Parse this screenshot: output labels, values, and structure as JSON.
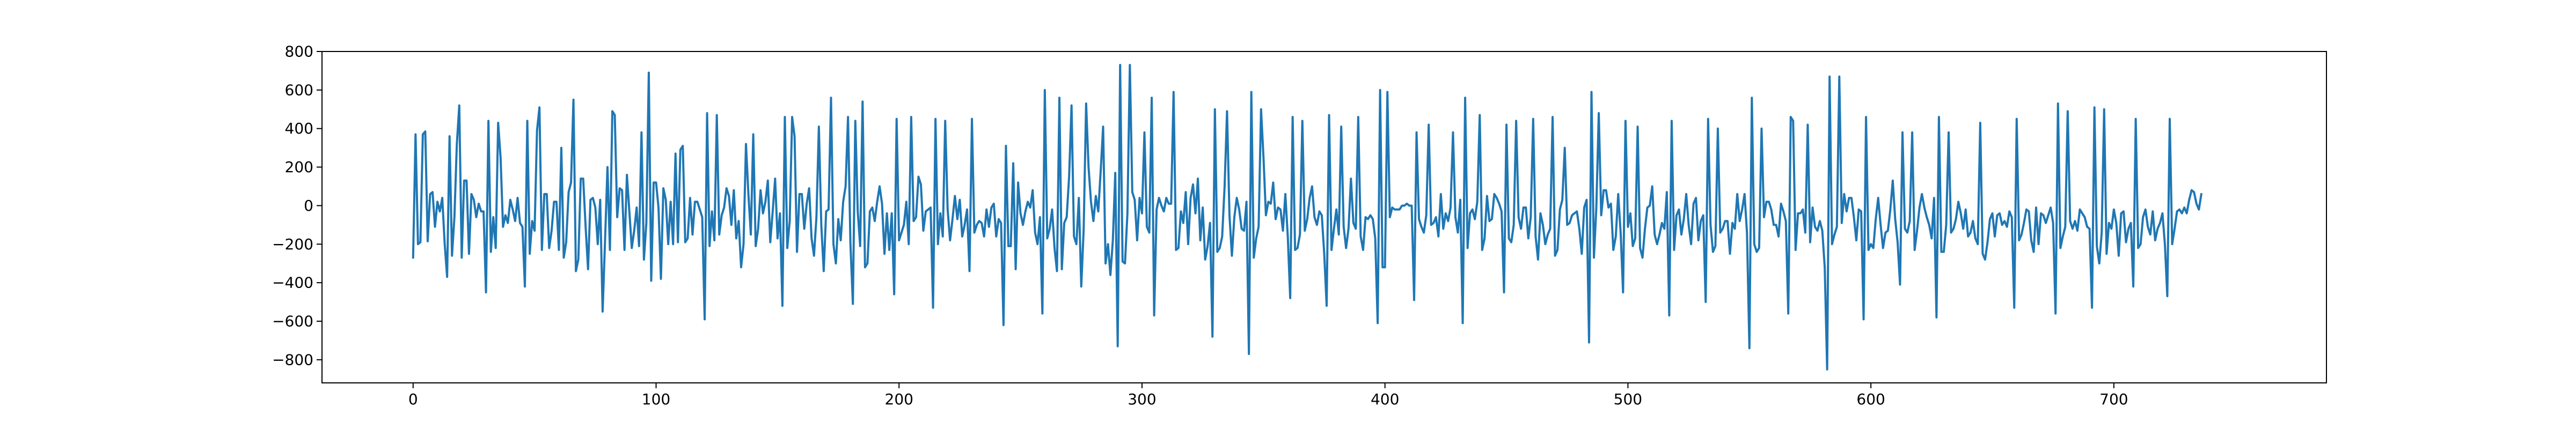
{
  "chart_data": {
    "type": "line",
    "title": "",
    "xlabel": "",
    "ylabel": "",
    "xlim": [
      -37.5,
      787.5
    ],
    "ylim": [
      -920,
      800
    ],
    "xticks": [
      0,
      100,
      200,
      300,
      400,
      500,
      600,
      700
    ],
    "yticks": [
      -800,
      -600,
      -400,
      -200,
      0,
      200,
      400,
      600,
      800
    ],
    "grid": false,
    "legend": "none",
    "series": [
      {
        "color": "#1f77b4",
        "x_start": 0,
        "x_step": 1,
        "values": [
          -270,
          370,
          -200,
          -190,
          370,
          385,
          -185,
          60,
          70,
          -110,
          20,
          -30,
          40,
          -200,
          -370,
          360,
          -260,
          -60,
          320,
          520,
          -270,
          130,
          130,
          -250,
          60,
          30,
          -60,
          10,
          -30,
          -30,
          -450,
          440,
          -240,
          -60,
          -220,
          430,
          250,
          -110,
          -50,
          -90,
          30,
          -20,
          -80,
          40,
          -90,
          -110,
          -420,
          440,
          -250,
          -80,
          -130,
          390,
          510,
          -230,
          60,
          60,
          -220,
          -130,
          20,
          20,
          -230,
          300,
          -270,
          -190,
          70,
          120,
          550,
          -340,
          -280,
          140,
          140,
          -110,
          -330,
          30,
          40,
          -10,
          -200,
          30,
          -550,
          -180,
          200,
          -230,
          490,
          470,
          -60,
          90,
          80,
          -230,
          160,
          -30,
          -220,
          -130,
          -10,
          -210,
          380,
          -280,
          -90,
          690,
          -390,
          120,
          120,
          -10,
          -380,
          90,
          30,
          -200,
          20,
          -200,
          270,
          -190,
          290,
          310,
          -190,
          -170,
          40,
          -150,
          20,
          20,
          -20,
          -60,
          -590,
          480,
          -210,
          -30,
          -180,
          470,
          -150,
          -50,
          -10,
          90,
          50,
          -100,
          80,
          -170,
          -80,
          -320,
          -200,
          320,
          60,
          -150,
          370,
          -210,
          -120,
          80,
          -40,
          20,
          130,
          -190,
          -30,
          140,
          -170,
          -40,
          -520,
          460,
          -220,
          -80,
          460,
          360,
          -240,
          60,
          60,
          -120,
          10,
          90,
          -170,
          -260,
          -60,
          410,
          -100,
          -340,
          -30,
          -20,
          560,
          -200,
          -300,
          -70,
          -180,
          20,
          100,
          460,
          -200,
          -510,
          440,
          -30,
          -210,
          540,
          -320,
          -300,
          -30,
          -10,
          -80,
          20,
          100,
          10,
          -250,
          -40,
          -230,
          -40,
          -460,
          450,
          -180,
          -140,
          -100,
          20,
          -200,
          460,
          -80,
          -60,
          150,
          110,
          -130,
          -30,
          -20,
          -10,
          -530,
          450,
          -200,
          -40,
          -160,
          440,
          -20,
          -180,
          -70,
          50,
          -70,
          30,
          -160,
          -100,
          -20,
          -340,
          450,
          -140,
          -100,
          -80,
          -90,
          -160,
          -20,
          -110,
          -10,
          10,
          -160,
          -70,
          -90,
          -620,
          310,
          -210,
          -210,
          220,
          -330,
          120,
          -40,
          -100,
          -30,
          20,
          -10,
          80,
          -140,
          -200,
          -60,
          -560,
          600,
          -170,
          -120,
          -20,
          -220,
          -340,
          560,
          -330,
          -90,
          -60,
          150,
          520,
          -160,
          -200,
          40,
          -420,
          -120,
          530,
          200,
          20,
          -80,
          50,
          -30,
          180,
          410,
          -300,
          -200,
          -360,
          -180,
          170,
          -730,
          730,
          -290,
          -300,
          -40,
          730,
          70,
          30,
          -180,
          40,
          -40,
          380,
          -110,
          -140,
          560,
          -570,
          -20,
          40,
          0,
          -30,
          40,
          10,
          10,
          590,
          -230,
          -220,
          -30,
          -90,
          70,
          -200,
          40,
          110,
          -40,
          140,
          -180,
          -10,
          -280,
          -210,
          -90,
          -680,
          500,
          -240,
          -220,
          -160,
          100,
          490,
          -50,
          -260,
          -60,
          40,
          -20,
          -120,
          -130,
          20,
          -770,
          590,
          -270,
          -170,
          -110,
          500,
          250,
          -50,
          20,
          10,
          120,
          -70,
          -10,
          -20,
          -130,
          60,
          -160,
          -480,
          460,
          -230,
          -220,
          -150,
          440,
          -130,
          -70,
          40,
          100,
          -60,
          -100,
          -30,
          -50,
          -250,
          -520,
          470,
          -230,
          -120,
          -20,
          -150,
          410,
          -110,
          -220,
          -120,
          140,
          -90,
          -120,
          460,
          -160,
          -230,
          -60,
          -70,
          -50,
          -70,
          -170,
          -610,
          600,
          -320,
          -320,
          590,
          -60,
          -10,
          -20,
          -20,
          -20,
          0,
          0,
          10,
          0,
          0,
          -490,
          380,
          -70,
          -110,
          -140,
          -50,
          420,
          -100,
          -90,
          -60,
          -160,
          60,
          -120,
          -40,
          -80,
          -10,
          380,
          -60,
          -140,
          30,
          -610,
          560,
          -220,
          -40,
          -20,
          -70,
          20,
          470,
          -230,
          -170,
          50,
          -80,
          -70,
          60,
          40,
          10,
          -30,
          -450,
          420,
          -170,
          -190,
          -100,
          440,
          -60,
          -120,
          -10,
          -10,
          -170,
          -60,
          450,
          -160,
          -280,
          -40,
          -100,
          -200,
          -150,
          -120,
          460,
          -260,
          -230,
          -20,
          30,
          300,
          -100,
          -90,
          -50,
          -40,
          -30,
          -120,
          -250,
          -10,
          30,
          -710,
          590,
          -270,
          -10,
          480,
          -50,
          80,
          80,
          -10,
          10,
          -230,
          -160,
          60,
          -140,
          -450,
          440,
          -110,
          -40,
          -210,
          -170,
          410,
          -220,
          -270,
          -120,
          -10,
          0,
          100,
          -150,
          -200,
          -150,
          -90,
          -120,
          70,
          -570,
          440,
          -230,
          -50,
          -20,
          -150,
          -70,
          60,
          -100,
          -200,
          10,
          40,
          -180,
          -80,
          -50,
          -500,
          450,
          -100,
          -240,
          -210,
          400,
          -140,
          -120,
          -80,
          -80,
          -250,
          -90,
          -120,
          60,
          -80,
          -20,
          60,
          -140,
          -740,
          560,
          -200,
          -240,
          -220,
          400,
          -60,
          20,
          20,
          -20,
          -100,
          -100,
          -160,
          10,
          -30,
          -80,
          -560,
          460,
          440,
          -230,
          -40,
          -40,
          -20,
          -140,
          420,
          -190,
          -10,
          -110,
          -130,
          -80,
          -130,
          -320,
          -850,
          670,
          -200,
          -150,
          -110,
          670,
          -90,
          60,
          -30,
          40,
          40,
          -60,
          -180,
          -20,
          -30,
          -590,
          460,
          -230,
          -200,
          -220,
          -70,
          40,
          -100,
          -220,
          -140,
          -130,
          -20,
          130,
          -70,
          -190,
          -410,
          380,
          -120,
          -140,
          -80,
          380,
          -230,
          -130,
          -10,
          60,
          -10,
          -60,
          -100,
          -170,
          40,
          -580,
          460,
          -240,
          -240,
          -100,
          380,
          -140,
          -120,
          -70,
          20,
          -40,
          -120,
          -20,
          -160,
          -140,
          -80,
          -170,
          -200,
          430,
          -250,
          -280,
          -190,
          -70,
          -40,
          -160,
          -50,
          -40,
          -100,
          -80,
          -110,
          -30,
          -60,
          -530,
          450,
          -180,
          -150,
          -90,
          -20,
          -30,
          -180,
          -240,
          -10,
          -200,
          -40,
          -50,
          -90,
          -50,
          -10,
          -90,
          -560,
          530,
          -220,
          -160,
          -110,
          490,
          -80,
          -120,
          -80,
          -130,
          -20,
          -40,
          -60,
          -110,
          -120,
          -530,
          510,
          -210,
          -300,
          -140,
          500,
          -250,
          -90,
          -120,
          -20,
          -90,
          -260,
          -40,
          -30,
          -190,
          -120,
          -90,
          -420,
          450,
          -220,
          -200,
          -60,
          -20,
          -110,
          -150,
          -30,
          -180,
          -120,
          -90,
          -40,
          -200,
          -470,
          450,
          -200,
          -120,
          -30,
          -20,
          -40,
          -10,
          -40,
          30,
          80,
          70,
          10,
          -20,
          60
        ]
      }
    ]
  }
}
